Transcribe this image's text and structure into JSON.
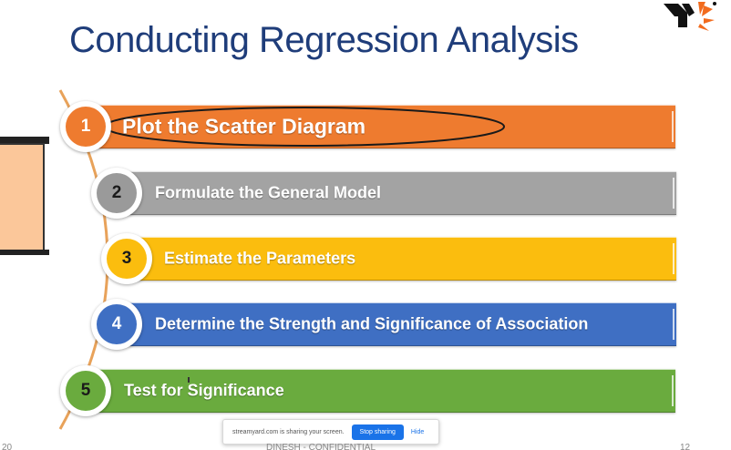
{
  "slide": {
    "title": "Conducting Regression Analysis"
  },
  "steps": [
    {
      "number": "1",
      "label": "Plot the Scatter Diagram",
      "color": "#ee7b2f",
      "number_color": "#ffffff",
      "circle_color": "#ee7b2f"
    },
    {
      "number": "2",
      "label": "Formulate the General Model",
      "color": "#a3a3a3",
      "number_color": "#1a1a1a",
      "circle_color": "#9a9a9a"
    },
    {
      "number": "3",
      "label": "Estimate the Parameters",
      "color": "#fbbd0e",
      "number_color": "#1a1a1a",
      "circle_color": "#fbbd0e"
    },
    {
      "number": "4",
      "label": "Determine the Strength and Significance of Association",
      "color": "#3f6fc3",
      "number_color": "#ffffff",
      "circle_color": "#3f6fc3"
    },
    {
      "number": "5",
      "label": "Test for Significance",
      "color": "#6aab3e",
      "number_color": "#1a1a1a",
      "circle_color": "#6aab3e"
    }
  ],
  "share_bar": {
    "message": "streamyard.com is sharing your screen.",
    "stop_label": "Stop sharing",
    "hide_label": "Hide"
  },
  "footer": {
    "left": "20",
    "center": "DINESH - CONFIDENTIAL",
    "right": "12"
  },
  "colors": {
    "title": "#1f3d7a",
    "arc": "#e8a25a",
    "logo_black": "#111111",
    "logo_orange": "#f26b1d"
  }
}
